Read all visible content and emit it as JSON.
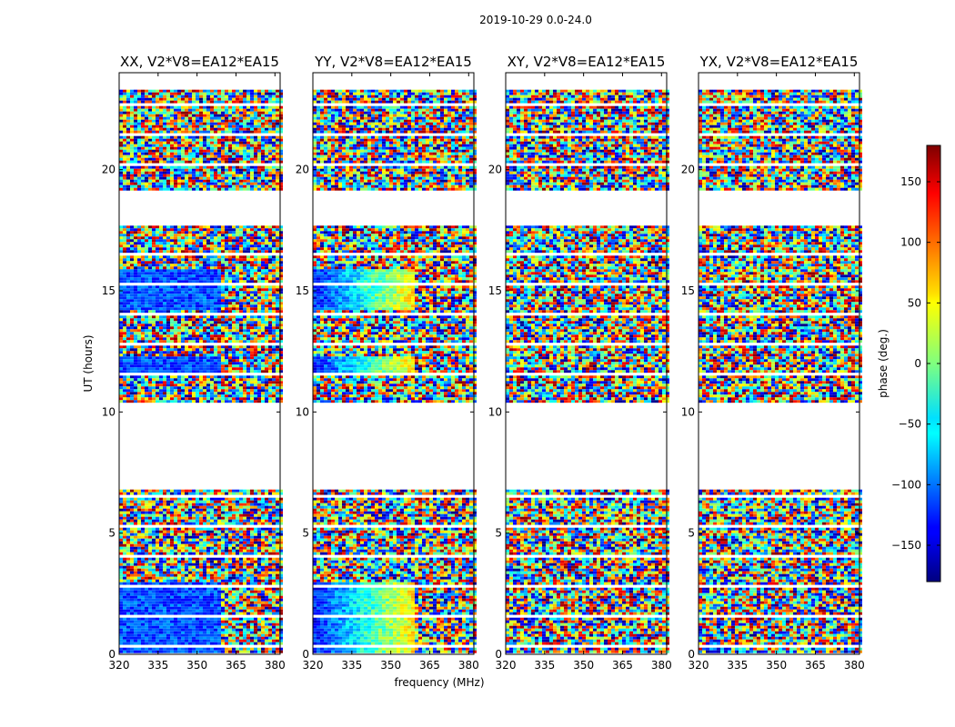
{
  "figure": {
    "suptitle": "2019-10-29 0.0-24.0",
    "xlabel": "frequency (MHz)",
    "ylabel": "UT (hours)"
  },
  "chart_data": {
    "type": "heatmap",
    "title": "2019-10-29 0.0-24.0",
    "xlabel": "frequency (MHz)",
    "ylabel": "UT (hours)",
    "xlim": [
      320,
      382
    ],
    "ylim": [
      0,
      24
    ],
    "x_ticks": [
      320,
      335,
      350,
      365,
      380
    ],
    "y_ticks": [
      0,
      5,
      10,
      15,
      20
    ],
    "panels": [
      {
        "title": "XX, V2*V8=EA12*EA15",
        "polarization": "XX"
      },
      {
        "title": "YY, V2*V8=EA12*EA15",
        "polarization": "YY"
      },
      {
        "title": "XY, V2*V8=EA12*EA15",
        "polarization": "XY"
      },
      {
        "title": "YX, V2*V8=EA12*EA15",
        "polarization": "YX"
      }
    ],
    "data_time_ranges_ut_hours": [
      [
        0.05,
        6.8
      ],
      [
        10.3,
        17.8
      ],
      [
        19.2,
        23.3
      ]
    ],
    "colorbar": {
      "label": "phase (deg.)",
      "colormap": "jet",
      "range": [
        -180,
        180
      ],
      "ticks": [
        -150,
        -100,
        -50,
        0,
        50,
        100,
        150
      ],
      "tick_labels": [
        "−150",
        "−100",
        "−50",
        "0",
        "50",
        "100",
        "150"
      ]
    }
  }
}
